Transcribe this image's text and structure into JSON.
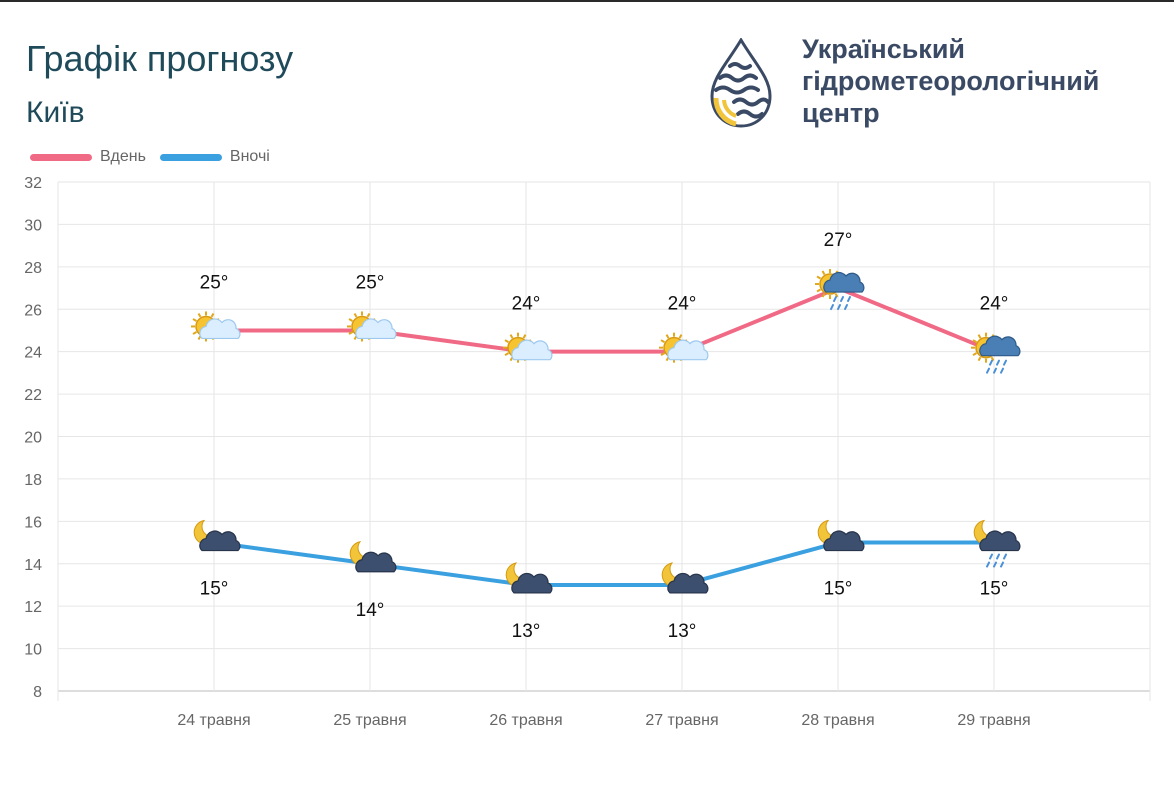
{
  "header": {
    "title": "Графік прогнозу",
    "city": "Київ",
    "org_lines": [
      "Український",
      "гідрометеорологічний",
      "центр"
    ]
  },
  "colors": {
    "day": "#f06a86",
    "night": "#3aa0e0",
    "grid": "#e6e6e6",
    "brand": "#3b4a64",
    "accent": "#f2c43a"
  },
  "chart_data": {
    "type": "line",
    "categories": [
      "24 травня",
      "25 травня",
      "26 травня",
      "27 травня",
      "28 травня",
      "29 травня"
    ],
    "ylim": [
      8,
      32
    ],
    "yticks": [
      8,
      10,
      12,
      14,
      16,
      18,
      20,
      22,
      24,
      26,
      28,
      30,
      32
    ],
    "grid": true,
    "legend": "top-left",
    "series": [
      {
        "name": "Вдень",
        "values": [
          25,
          25,
          24,
          24,
          27,
          24
        ],
        "labels": [
          "25°",
          "25°",
          "24°",
          "24°",
          "27°",
          "24°"
        ],
        "icons": [
          "sun-cloud-icon",
          "sun-cloud-icon",
          "sun-cloud-icon",
          "sun-cloud-icon",
          "sun-rain-cloud-icon",
          "sun-rain-cloud-icon"
        ]
      },
      {
        "name": "Вночі",
        "values": [
          15,
          14,
          13,
          13,
          15,
          15
        ],
        "labels": [
          "15°",
          "14°",
          "13°",
          "13°",
          "15°",
          "15°"
        ],
        "icons": [
          "moon-cloud-icon",
          "moon-cloud-icon",
          "moon-cloud-icon",
          "moon-cloud-icon",
          "moon-cloud-icon",
          "moon-rain-cloud-icon"
        ]
      }
    ]
  }
}
